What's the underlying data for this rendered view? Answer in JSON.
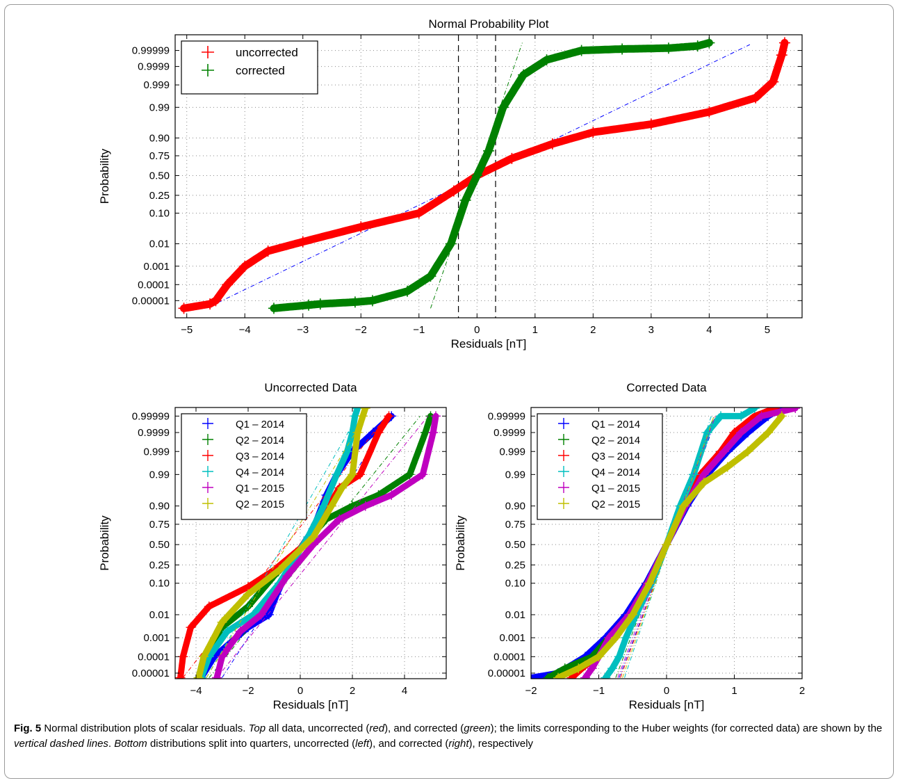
{
  "caption": {
    "label": "Fig. 5",
    "parts": [
      {
        "t": "  Normal distribution plots of scalar residuals. ",
        "i": false
      },
      {
        "t": "Top",
        "i": true
      },
      {
        "t": " all data, uncorrected (",
        "i": false
      },
      {
        "t": "red",
        "i": true
      },
      {
        "t": "), and corrected (",
        "i": false
      },
      {
        "t": "green",
        "i": true
      },
      {
        "t": "); the limits corresponding to the Huber weights (for corrected data) are shown by the ",
        "i": false
      },
      {
        "t": "vertical dashed lines",
        "i": true
      },
      {
        "t": ". ",
        "i": false
      },
      {
        "t": "Bottom",
        "i": true
      },
      {
        "t": " distributions split into quarters, uncorrected (",
        "i": false
      },
      {
        "t": "left",
        "i": true
      },
      {
        "t": "), and corrected (",
        "i": false
      },
      {
        "t": "right",
        "i": true
      },
      {
        "t": "), respectively",
        "i": false
      }
    ]
  },
  "prob_ticks": [
    {
      "p": 1e-05,
      "label": "0.00001"
    },
    {
      "p": 0.0001,
      "label": "0.0001"
    },
    {
      "p": 0.001,
      "label": "0.001"
    },
    {
      "p": 0.01,
      "label": "0.01"
    },
    {
      "p": 0.1,
      "label": "0.10"
    },
    {
      "p": 0.25,
      "label": "0.25"
    },
    {
      "p": 0.5,
      "label": "0.50"
    },
    {
      "p": 0.75,
      "label": "0.75"
    },
    {
      "p": 0.9,
      "label": "0.90"
    },
    {
      "p": 0.99,
      "label": "0.99"
    },
    {
      "p": 0.999,
      "label": "0.999"
    },
    {
      "p": 0.9999,
      "label": "0.9999"
    },
    {
      "p": 0.99999,
      "label": "0.99999"
    }
  ],
  "chart_data": [
    {
      "type": "scatter",
      "title": "Normal Probability Plot",
      "xlabel": "Residuals [nT]",
      "ylabel": "Probability",
      "xlim": [
        -5.2,
        5.6
      ],
      "zlim": [
        -4.85,
        4.8
      ],
      "yscale": "normal-probability",
      "xticks": [
        -5,
        -4,
        -3,
        -2,
        -1,
        0,
        1,
        2,
        3,
        4,
        5
      ],
      "grid": true,
      "legend_position": "top-left",
      "huber_limits": [
        -0.32,
        0.32
      ],
      "series": [
        {
          "name": "uncorrected",
          "color": "#ff0000",
          "x": [
            -5.05,
            -4.6,
            -4.5,
            -4.3,
            -4.0,
            -3.6,
            -3.0,
            -2.0,
            -1.0,
            -0.4,
            0.0,
            0.6,
            1.3,
            2.0,
            3.0,
            4.0,
            4.8,
            5.1,
            5.25,
            5.3
          ],
          "p": [
            3e-06,
            6e-06,
            1e-05,
            0.0001,
            0.001,
            0.005,
            0.012,
            0.04,
            0.1,
            0.3,
            0.5,
            0.72,
            0.86,
            0.93,
            0.96,
            0.985,
            0.996,
            0.9993,
            0.99998,
            0.999997
          ],
          "fit": {
            "x": [
              -4.6,
              4.7
            ],
            "p": [
              4e-06,
              0.999996
            ]
          }
        },
        {
          "name": "corrected",
          "color": "#008000",
          "x": [
            -3.5,
            -2.9,
            -2.7,
            -2.1,
            -1.8,
            -1.2,
            -0.8,
            -0.45,
            -0.2,
            0.0,
            0.2,
            0.45,
            0.8,
            1.2,
            1.8,
            2.5,
            3.3,
            3.8,
            4.0
          ],
          "p": [
            3e-06,
            5e-06,
            6e-06,
            8e-06,
            1e-05,
            4e-05,
            0.0003,
            0.01,
            0.2,
            0.5,
            0.8,
            0.99,
            0.9997,
            0.99996,
            0.99999,
            0.999992,
            0.999993,
            0.999995,
            0.999997
          ],
          "fit": {
            "x": [
              -0.8,
              0.78
            ],
            "p": [
              3e-06,
              0.999997
            ]
          }
        }
      ]
    },
    {
      "type": "scatter",
      "title": "Uncorrected Data",
      "xlabel": "Residuals [nT]",
      "ylabel": "Probability",
      "xlim": [
        -4.8,
        5.6
      ],
      "zlim": [
        -4.45,
        4.55
      ],
      "yscale": "normal-probability",
      "xticks": [
        -4,
        -2,
        0,
        2,
        4
      ],
      "grid": true,
      "legend_position": "top-left",
      "series": [
        {
          "name": "Q1 – 2014",
          "color": "#0000ff",
          "x": [
            -3.8,
            -3.3,
            -2.0,
            -1.2,
            -0.9,
            -0.3,
            0.5,
            1.0,
            1.4,
            2.0,
            2.8,
            3.5
          ],
          "p": [
            5e-06,
            0.0001,
            0.003,
            0.01,
            0.05,
            0.3,
            0.7,
            0.95,
            0.99,
            0.999,
            0.9999,
            0.99999
          ],
          "fit": {
            "x": [
              -3.0,
              3.5
            ],
            "p": [
              5e-06,
              0.99999
            ]
          }
        },
        {
          "name": "Q2 – 2014",
          "color": "#008000",
          "x": [
            -3.9,
            -3.7,
            -3.0,
            -2.0,
            -1.0,
            0.0,
            1.0,
            2.0,
            3.0,
            4.2,
            4.8,
            5.0
          ],
          "p": [
            5e-06,
            0.0001,
            0.003,
            0.02,
            0.15,
            0.45,
            0.8,
            0.9,
            0.95,
            0.99,
            0.9999,
            0.99999
          ],
          "fit": {
            "x": [
              -3.5,
              4.6
            ],
            "p": [
              5e-06,
              0.99999
            ]
          }
        },
        {
          "name": "Q3 – 2014",
          "color": "#ff0000",
          "x": [
            -4.6,
            -4.5,
            -4.2,
            -3.5,
            -2.0,
            -1.0,
            0.0,
            0.8,
            1.5,
            2.3,
            3.0,
            3.4
          ],
          "p": [
            5e-06,
            0.0001,
            0.003,
            0.02,
            0.08,
            0.2,
            0.45,
            0.8,
            0.97,
            0.99,
            0.9999,
            0.99999
          ],
          "fit": {
            "x": [
              -4.5,
              3.3
            ],
            "p": [
              5e-06,
              0.99999
            ]
          }
        },
        {
          "name": "Q4 – 2014",
          "color": "#00bfbf",
          "x": [
            -3.8,
            -3.5,
            -2.8,
            -1.8,
            -0.8,
            0.3,
            0.9,
            1.4,
            1.8,
            2.0,
            2.1,
            2.2
          ],
          "p": [
            5e-06,
            0.0001,
            0.002,
            0.01,
            0.1,
            0.6,
            0.9,
            0.99,
            0.999,
            0.9999,
            0.99999,
            0.999997
          ],
          "fit": {
            "x": [
              -3.6,
              2.2
            ],
            "p": [
              5e-06,
              0.99999
            ]
          }
        },
        {
          "name": "Q1 – 2015",
          "color": "#bf00bf",
          "x": [
            -3.2,
            -3.0,
            -2.3,
            -1.5,
            -0.5,
            0.5,
            1.5,
            2.5,
            3.5,
            4.7,
            5.1,
            5.2
          ],
          "p": [
            5e-06,
            0.0001,
            0.002,
            0.01,
            0.15,
            0.5,
            0.8,
            0.9,
            0.95,
            0.99,
            0.9999,
            0.99999
          ],
          "fit": {
            "x": [
              -3.2,
              4.9
            ],
            "p": [
              5e-06,
              0.99999
            ]
          }
        },
        {
          "name": "Q2 – 2015",
          "color": "#bfbf00",
          "x": [
            -3.9,
            -3.7,
            -3.0,
            -2.0,
            -0.8,
            0.5,
            1.2,
            1.6,
            2.0,
            2.2,
            2.4,
            2.5
          ],
          "p": [
            5e-06,
            0.0001,
            0.005,
            0.05,
            0.2,
            0.6,
            0.9,
            0.97,
            0.99,
            0.9999,
            0.99999,
            0.999997
          ],
          "fit": {
            "x": [
              -3.6,
              2.5
            ],
            "p": [
              5e-06,
              0.99999
            ]
          }
        }
      ]
    },
    {
      "type": "scatter",
      "title": "Corrected Data",
      "xlabel": "Residuals [nT]",
      "ylabel": "Probability",
      "xlim": [
        -2.0,
        2.0
      ],
      "zlim": [
        -4.45,
        4.55
      ],
      "yscale": "normal-probability",
      "xticks": [
        -2,
        -1,
        0,
        1,
        2
      ],
      "grid": true,
      "legend_position": "top-left",
      "series": [
        {
          "name": "Q1 – 2014",
          "color": "#0000ff",
          "x": [
            -2.0,
            -1.6,
            -1.2,
            -0.9,
            -0.6,
            -0.3,
            0.0,
            0.3,
            0.6,
            0.9,
            1.2,
            1.5,
            1.7
          ],
          "p": [
            5e-06,
            1e-05,
            0.0001,
            0.001,
            0.01,
            0.1,
            0.5,
            0.9,
            0.99,
            0.999,
            0.9999,
            0.99999,
            0.999997
          ],
          "fit": {
            "x": [
              -0.7,
              0.75
            ],
            "p": [
              5e-06,
              0.99999
            ]
          }
        },
        {
          "name": "Q2 – 2014",
          "color": "#008000",
          "x": [
            -1.75,
            -1.5,
            -1.1,
            -0.85,
            -0.55,
            -0.28,
            0.0,
            0.28,
            0.55,
            0.85,
            1.1,
            1.4,
            1.6
          ],
          "p": [
            5e-06,
            2e-05,
            0.0001,
            0.001,
            0.01,
            0.1,
            0.5,
            0.9,
            0.99,
            0.999,
            0.9999,
            0.99999,
            0.999997
          ],
          "fit": {
            "x": [
              -0.75,
              0.7
            ],
            "p": [
              5e-06,
              0.99999
            ]
          }
        },
        {
          "name": "Q3 – 2014",
          "color": "#ff0000",
          "x": [
            -1.4,
            -1.2,
            -1.0,
            -0.8,
            -0.5,
            -0.25,
            0.0,
            0.25,
            0.5,
            0.8,
            1.0,
            1.3,
            1.6
          ],
          "p": [
            5e-06,
            3e-05,
            0.0001,
            0.001,
            0.01,
            0.1,
            0.5,
            0.9,
            0.99,
            0.999,
            0.9999,
            0.99999,
            0.999997
          ],
          "fit": {
            "x": [
              -0.68,
              0.72
            ],
            "p": [
              5e-06,
              0.99999
            ]
          }
        },
        {
          "name": "Q4 – 2014",
          "color": "#00bfbf",
          "x": [
            -0.9,
            -0.8,
            -0.7,
            -0.6,
            -0.45,
            -0.22,
            0.0,
            0.2,
            0.4,
            0.6,
            0.8,
            1.1,
            1.3
          ],
          "p": [
            5e-06,
            2e-05,
            0.0001,
            0.001,
            0.01,
            0.1,
            0.5,
            0.9,
            0.99,
            0.9999,
            0.99999,
            0.99999,
            0.999997
          ],
          "fit": {
            "x": [
              -0.62,
              0.66
            ],
            "p": [
              5e-06,
              0.99999
            ]
          }
        },
        {
          "name": "Q1 – 2015",
          "color": "#bf00bf",
          "x": [
            -1.2,
            -1.1,
            -1.0,
            -0.85,
            -0.55,
            -0.28,
            0.0,
            0.28,
            0.55,
            0.85,
            1.1,
            1.4,
            1.9
          ],
          "p": [
            5e-06,
            2e-05,
            0.0001,
            0.001,
            0.01,
            0.1,
            0.5,
            0.9,
            0.99,
            0.999,
            0.9999,
            0.99999,
            0.999997
          ],
          "fit": {
            "x": [
              -0.72,
              0.72
            ],
            "p": [
              5e-06,
              0.99999
            ]
          }
        },
        {
          "name": "Q2 – 2015",
          "color": "#bfbf00",
          "x": [
            -1.6,
            -1.3,
            -1.0,
            -0.75,
            -0.5,
            -0.25,
            0.0,
            0.25,
            0.55,
            0.9,
            1.2,
            1.5,
            1.7
          ],
          "p": [
            5e-06,
            2e-05,
            0.0001,
            0.001,
            0.01,
            0.1,
            0.5,
            0.9,
            0.98,
            0.995,
            0.999,
            0.9999,
            0.99999
          ],
          "fit": {
            "x": [
              -0.65,
              0.7
            ],
            "p": [
              5e-06,
              0.99999
            ]
          }
        }
      ]
    }
  ]
}
